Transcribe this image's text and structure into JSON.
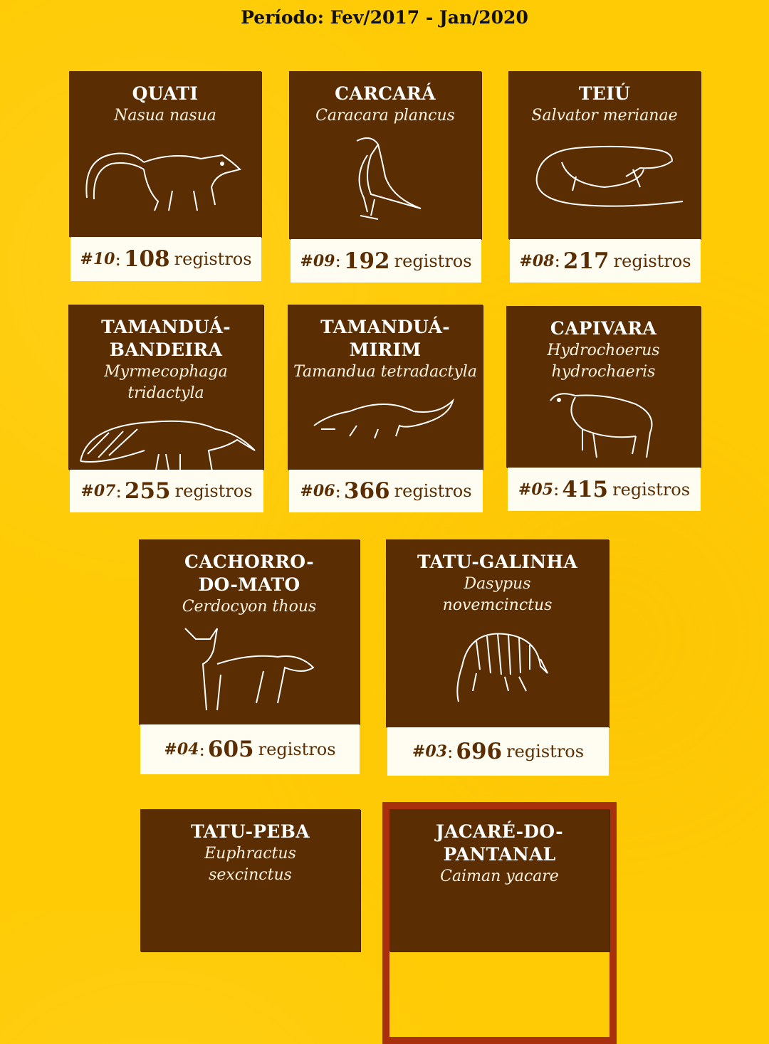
{
  "header": {
    "period": "Período: Fev/2017 - Jan/2020"
  },
  "colors": {
    "background": "#ffcb05",
    "card": "#5a2d02",
    "label_bg": "#fffdf2",
    "highlight_border": "#a8300c"
  },
  "unit_label": "registros",
  "cards": [
    {
      "rank": "#10",
      "count": "108",
      "name_lines": [
        "QUATI"
      ],
      "sci_lines": [
        "Nasua nasua"
      ],
      "icon": "coati-icon"
    },
    {
      "rank": "#09",
      "count": "192",
      "name_lines": [
        "CARCARÁ"
      ],
      "sci_lines": [
        "Caracara plancus"
      ],
      "icon": "caracara-icon"
    },
    {
      "rank": "#08",
      "count": "217",
      "name_lines": [
        "TEIÚ"
      ],
      "sci_lines": [
        "Salvator merianae"
      ],
      "icon": "tegu-lizard-icon"
    },
    {
      "rank": "#07",
      "count": "255",
      "name_lines": [
        "TAMANDUÁ-",
        "BANDEIRA"
      ],
      "sci_lines": [
        "Myrmecophaga tridactyla"
      ],
      "icon": "giant-anteater-icon"
    },
    {
      "rank": "#06",
      "count": "366",
      "name_lines": [
        "TAMANDUÁ-",
        "MIRIM"
      ],
      "sci_lines": [
        "Tamandua tetradactyla"
      ],
      "icon": "lesser-anteater-icon"
    },
    {
      "rank": "#05",
      "count": "415",
      "name_lines": [
        "CAPIVARA"
      ],
      "sci_lines": [
        "Hydrochoerus",
        "hydrochaeris"
      ],
      "icon": "capybara-icon"
    },
    {
      "rank": "#04",
      "count": "605",
      "name_lines": [
        "CACHORRO-",
        "DO-MATO"
      ],
      "sci_lines": [
        "Cerdocyon thous"
      ],
      "icon": "crab-eating-fox-icon"
    },
    {
      "rank": "#03",
      "count": "696",
      "name_lines": [
        "TATU-GALINHA"
      ],
      "sci_lines": [
        "Dasypus",
        "novemcinctus"
      ],
      "icon": "armadillo-icon"
    },
    {
      "name_lines": [
        "TATU-PEBA"
      ],
      "sci_lines": [
        "Euphractus",
        "sexcinctus"
      ]
    },
    {
      "name_lines": [
        "JACARÉ-DO-",
        "PANTANAL"
      ],
      "sci_lines": [
        "Caiman yacare"
      ],
      "highlight": true
    }
  ]
}
